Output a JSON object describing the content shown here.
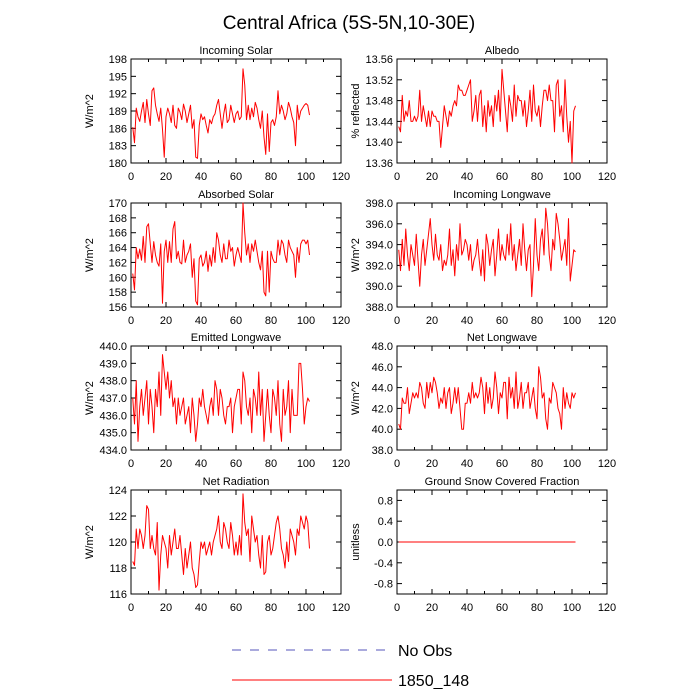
{
  "title": "Central Africa (5S-5N,10-30E)",
  "legend": [
    {
      "label": "No Obs",
      "color": "#5555bb",
      "dash": true
    },
    {
      "label": "1850_148",
      "color": "#ff0000",
      "dash": false
    }
  ],
  "chart_data": [
    {
      "type": "line",
      "title": "Incoming Solar",
      "ylabel": "W/m^2",
      "xlim": [
        0,
        120
      ],
      "ylim": [
        180,
        198
      ],
      "xticks": [
        "0",
        "20",
        "40",
        "60",
        "80",
        "100",
        "120"
      ],
      "yticks": [
        "180",
        "183",
        "186",
        "189",
        "192",
        "195",
        "198"
      ],
      "series": [
        {
          "color": "#ff0000",
          "x_start": 1,
          "values": [
            186.2,
            183.5,
            189.5,
            188.0,
            187.2,
            189.0,
            190.5,
            187.0,
            191.0,
            188.5,
            186.5,
            192.5,
            193.0,
            190.0,
            188.5,
            187.2,
            189.5,
            185.8,
            181.0,
            188.0,
            189.5,
            188.5,
            187.0,
            190.0,
            186.5,
            186.0,
            189.5,
            188.8,
            187.5,
            190.2,
            189.0,
            187.0,
            188.5,
            190.0,
            186.0,
            187.5,
            181.0,
            180.8,
            186.5,
            188.5,
            187.5,
            188.0,
            186.5,
            185.2,
            187.5,
            186.8,
            188.0,
            188.5,
            190.0,
            191.0,
            188.5,
            186.0,
            188.5,
            190.2,
            187.0,
            187.5,
            190.0,
            188.5,
            187.0,
            188.5,
            189.0,
            187.5,
            188.0,
            196.3,
            193.5,
            187.5,
            190.0,
            187.5,
            189.5,
            188.0,
            190.5,
            189.5,
            187.5,
            186.0,
            189.0,
            184.5,
            181.5,
            188.5,
            182.0,
            187.0,
            187.5,
            186.5,
            188.0,
            192.5,
            188.5,
            190.0,
            189.0,
            187.5,
            188.5,
            190.5,
            189.5,
            188.0,
            187.0,
            183.0,
            190.0,
            187.5,
            189.0,
            189.5,
            190.0,
            190.3,
            190.0,
            188.3
          ]
        }
      ]
    },
    {
      "type": "line",
      "title": "Albedo",
      "ylabel": "% reflected",
      "xlim": [
        0,
        120
      ],
      "ylim": [
        13.36,
        13.56
      ],
      "xticks": [
        "0",
        "20",
        "40",
        "60",
        "80",
        "100",
        "120"
      ],
      "yticks": [
        "13.36",
        "13.40",
        "13.44",
        "13.48",
        "13.52",
        "13.56"
      ],
      "series": [
        {
          "color": "#ff0000",
          "x_start": 1,
          "values": [
            13.43,
            13.42,
            13.49,
            13.44,
            13.46,
            13.45,
            13.48,
            13.44,
            13.44,
            13.45,
            13.44,
            13.45,
            13.5,
            13.44,
            13.47,
            13.45,
            13.43,
            13.46,
            13.43,
            13.46,
            13.45,
            13.45,
            13.44,
            13.44,
            13.39,
            13.43,
            13.47,
            13.45,
            13.43,
            13.46,
            13.45,
            13.47,
            13.48,
            13.47,
            13.51,
            13.5,
            13.5,
            13.49,
            13.49,
            13.5,
            13.51,
            13.52,
            13.44,
            13.46,
            13.49,
            13.44,
            13.49,
            13.5,
            13.43,
            13.47,
            13.42,
            13.48,
            13.45,
            13.47,
            13.43,
            13.49,
            13.46,
            13.5,
            13.44,
            13.54,
            13.5,
            13.46,
            13.42,
            13.49,
            13.47,
            13.44,
            13.51,
            13.45,
            13.49,
            13.48,
            13.48,
            13.45,
            13.48,
            13.43,
            13.46,
            13.5,
            13.44,
            13.51,
            13.46,
            13.45,
            13.47,
            13.43,
            13.47,
            13.5,
            13.5,
            13.48,
            13.51,
            13.48,
            13.48,
            13.42,
            13.51,
            13.52,
            13.45,
            13.47,
            13.42,
            13.52,
            13.45,
            13.4,
            13.44,
            13.36,
            13.46,
            13.47
          ]
        }
      ]
    },
    {
      "type": "line",
      "title": "Absorbed Solar",
      "ylabel": "W/m^2",
      "xlim": [
        0,
        120
      ],
      "ylim": [
        156,
        170
      ],
      "xticks": [
        "0",
        "20",
        "40",
        "60",
        "80",
        "100",
        "120"
      ],
      "yticks": [
        "156",
        "158",
        "160",
        "162",
        "164",
        "166",
        "168",
        "170"
      ],
      "series": [
        {
          "color": "#ff0000",
          "x_start": 1,
          "values": [
            160.5,
            158.3,
            164.0,
            162.5,
            163.8,
            162.3,
            165.5,
            162.0,
            166.8,
            167.2,
            164.5,
            162.0,
            164.8,
            163.0,
            162.0,
            161.5,
            164.5,
            156.5,
            163.5,
            165.0,
            162.0,
            164.8,
            162.0,
            166.5,
            167.5,
            162.5,
            163.5,
            162.0,
            161.8,
            165.0,
            162.0,
            163.0,
            163.5,
            164.5,
            160.0,
            162.5,
            156.8,
            156.3,
            162.5,
            163.0,
            161.5,
            162.0,
            163.5,
            160.8,
            163.0,
            161.5,
            164.0,
            162.0,
            166.0,
            165.0,
            163.0,
            162.0,
            164.5,
            162.5,
            162.5,
            165.0,
            163.5,
            164.0,
            161.5,
            163.0,
            164.0,
            163.0,
            162.0,
            170.0,
            166.0,
            163.0,
            164.5,
            162.0,
            164.5,
            163.5,
            165.0,
            163.5,
            162.0,
            161.0,
            163.5,
            158.0,
            157.5,
            163.5,
            158.0,
            163.5,
            162.5,
            162.0,
            162.0,
            165.0,
            163.0,
            165.0,
            164.5,
            163.0,
            162.0,
            165.0,
            164.0,
            163.5,
            163.0,
            160.0,
            164.0,
            162.0,
            164.5,
            165.0,
            165.0,
            164.5,
            165.0,
            163.0
          ]
        }
      ]
    },
    {
      "type": "line",
      "title": "Incoming Longwave",
      "ylabel": "W/m^2",
      "xlim": [
        0,
        120
      ],
      "ylim": [
        388,
        398
      ],
      "xticks": [
        "0",
        "20",
        "40",
        "60",
        "80",
        "100",
        "120"
      ],
      "yticks": [
        "388.0",
        "390.0",
        "392.0",
        "394.0",
        "396.0",
        "398.0"
      ],
      "series": [
        {
          "color": "#ff0000",
          "x_start": 1,
          "values": [
            393.5,
            391.5,
            394.5,
            392.0,
            395.5,
            393.0,
            391.5,
            394.0,
            393.0,
            392.0,
            395.0,
            392.5,
            390.0,
            393.0,
            394.5,
            392.0,
            393.5,
            395.0,
            396.5,
            394.0,
            392.5,
            395.0,
            393.0,
            392.5,
            394.0,
            391.5,
            392.5,
            392.0,
            393.0,
            395.5,
            392.0,
            393.5,
            391.0,
            394.0,
            392.5,
            396.0,
            393.0,
            393.5,
            394.5,
            394.0,
            392.5,
            394.0,
            391.5,
            392.5,
            393.0,
            394.5,
            392.5,
            391.0,
            393.5,
            390.5,
            395.0,
            394.0,
            392.0,
            393.5,
            394.5,
            391.0,
            393.0,
            395.5,
            392.5,
            394.0,
            393.0,
            392.5,
            395.0,
            393.0,
            396.0,
            392.5,
            394.0,
            391.5,
            393.0,
            394.5,
            392.0,
            396.0,
            393.5,
            391.5,
            393.5,
            394.0,
            389.0,
            392.0,
            396.5,
            393.0,
            391.5,
            394.5,
            395.5,
            393.0,
            397.5,
            396.0,
            393.0,
            391.5,
            394.5,
            393.5,
            397.0,
            396.0,
            394.5,
            392.5,
            393.5,
            394.5,
            392.0,
            396.5,
            390.5,
            392.0,
            393.5,
            393.3
          ]
        }
      ]
    },
    {
      "type": "line",
      "title": "Emitted Longwave",
      "ylabel": "W/m^2",
      "xlim": [
        0,
        120
      ],
      "ylim": [
        434,
        440
      ],
      "xticks": [
        "0",
        "20",
        "40",
        "60",
        "80",
        "100",
        "120"
      ],
      "yticks": [
        "434.0",
        "435.0",
        "436.0",
        "437.0",
        "438.0",
        "439.0",
        "440.0"
      ],
      "series": [
        {
          "color": "#ff0000",
          "x_start": 1,
          "values": [
            437.0,
            435.5,
            438.0,
            434.5,
            436.5,
            437.5,
            436.0,
            437.0,
            438.0,
            435.5,
            437.5,
            436.5,
            435.0,
            437.5,
            436.5,
            438.5,
            436.0,
            439.5,
            438.5,
            437.5,
            438.5,
            437.0,
            438.0,
            436.5,
            437.0,
            435.5,
            437.0,
            436.0,
            436.5,
            437.0,
            435.5,
            436.0,
            436.5,
            435.0,
            437.0,
            436.0,
            434.5,
            435.5,
            437.0,
            436.5,
            437.5,
            436.5,
            436.0,
            435.5,
            436.5,
            437.0,
            436.0,
            438.0,
            437.5,
            436.0,
            437.5,
            437.0,
            436.0,
            435.5,
            436.5,
            436.5,
            437.0,
            435.0,
            436.5,
            437.0,
            437.5,
            437.5,
            435.5,
            438.5,
            438.0,
            436.5,
            436.0,
            437.0,
            435.0,
            437.5,
            437.0,
            436.0,
            438.5,
            436.0,
            437.5,
            434.5,
            436.0,
            437.5,
            436.0,
            435.0,
            437.5,
            437.0,
            436.0,
            438.0,
            435.5,
            434.5,
            437.5,
            436.0,
            436.5,
            438.0,
            435.0,
            437.5,
            436.0,
            436.0,
            436.0,
            439.0,
            439.0,
            437.5,
            435.5,
            436.5,
            437.0,
            436.8
          ]
        }
      ]
    },
    {
      "type": "line",
      "title": "Net Longwave",
      "ylabel": "W/m^2",
      "xlim": [
        0,
        120
      ],
      "ylim": [
        38,
        48
      ],
      "xticks": [
        "0",
        "20",
        "40",
        "60",
        "80",
        "100",
        "120"
      ],
      "yticks": [
        "38.0",
        "40.0",
        "42.0",
        "44.0",
        "46.0",
        "48.0"
      ],
      "series": [
        {
          "color": "#ff0000",
          "x_start": 1,
          "values": [
            40.5,
            40.0,
            43.0,
            42.5,
            42.5,
            44.0,
            41.5,
            42.5,
            43.5,
            43.0,
            43.5,
            43.0,
            44.5,
            44.0,
            42.5,
            42.0,
            44.5,
            43.0,
            44.5,
            43.5,
            45.0,
            44.5,
            43.5,
            42.0,
            43.0,
            42.5,
            44.0,
            42.0,
            43.5,
            44.0,
            41.5,
            42.5,
            44.0,
            42.5,
            44.0,
            42.0,
            40.0,
            40.0,
            42.5,
            42.5,
            43.5,
            42.5,
            44.5,
            43.0,
            43.5,
            43.0,
            43.5,
            45.0,
            44.0,
            41.5,
            44.5,
            42.5,
            44.0,
            42.0,
            43.0,
            45.5,
            44.0,
            41.5,
            43.5,
            43.0,
            44.5,
            44.5,
            41.0,
            45.0,
            43.0,
            44.0,
            42.0,
            45.5,
            42.0,
            43.0,
            44.5,
            42.0,
            43.5,
            43.5,
            44.5,
            42.0,
            43.0,
            44.0,
            42.0,
            41.0,
            46.0,
            45.0,
            43.0,
            43.5,
            41.0,
            40.0,
            43.0,
            42.5,
            44.5,
            44.0,
            43.5,
            42.0,
            41.5,
            40.0,
            44.0,
            42.0,
            43.5,
            42.5,
            42.0,
            43.5,
            43.0,
            43.5
          ]
        }
      ]
    },
    {
      "type": "line",
      "title": "Net Radiation",
      "ylabel": "W/m^2",
      "xlim": [
        0,
        120
      ],
      "ylim": [
        116,
        124
      ],
      "xticks": [
        "0",
        "20",
        "40",
        "60",
        "80",
        "100",
        "120"
      ],
      "yticks": [
        "116",
        "118",
        "120",
        "122",
        "124"
      ],
      "series": [
        {
          "color": "#ff0000",
          "x_start": 1,
          "values": [
            118.5,
            118.2,
            121.0,
            119.5,
            121.0,
            120.5,
            119.5,
            120.5,
            122.8,
            122.5,
            119.5,
            120.5,
            119.5,
            119.0,
            121.5,
            116.3,
            119.0,
            120.5,
            120.0,
            119.5,
            118.0,
            120.5,
            119.0,
            120.0,
            121.0,
            119.5,
            119.5,
            120.5,
            119.0,
            117.5,
            119.5,
            118.0,
            119.0,
            120.0,
            118.0,
            117.5,
            116.5,
            116.7,
            118.5,
            120.0,
            119.5,
            120.0,
            119.0,
            119.5,
            120.0,
            119.0,
            120.0,
            120.5,
            121.0,
            122.0,
            120.0,
            119.5,
            121.5,
            121.0,
            120.0,
            119.5,
            121.5,
            120.5,
            119.0,
            120.0,
            119.0,
            120.5,
            119.0,
            123.7,
            121.5,
            120.5,
            121.0,
            118.5,
            122.0,
            121.0,
            120.0,
            120.5,
            119.0,
            118.0,
            120.5,
            117.5,
            117.7,
            120.0,
            120.5,
            119.0,
            119.5,
            120.5,
            121.5,
            122.0,
            121.0,
            119.5,
            119.0,
            118.0,
            120.0,
            118.5,
            121.0,
            120.5,
            120.0,
            119.0,
            121.0,
            120.5,
            122.0,
            121.5,
            121.0,
            122.0,
            121.5,
            119.5
          ]
        }
      ]
    },
    {
      "type": "line",
      "title": "Ground Snow Covered Fraction",
      "ylabel": "unitless",
      "xlim": [
        0,
        120
      ],
      "ylim": [
        -1,
        1
      ],
      "xticks": [
        "0",
        "20",
        "40",
        "60",
        "80",
        "100",
        "120"
      ],
      "yticks": [
        "-0.8",
        "-0.4",
        "0.0",
        "0.4",
        "0.8"
      ],
      "ytick_values": [
        -0.8,
        -0.4,
        0.0,
        0.4,
        0.8
      ],
      "series": [
        {
          "color": "#ff0000",
          "x_start": 1,
          "x_end": 102,
          "constant": 0.0
        }
      ]
    }
  ]
}
